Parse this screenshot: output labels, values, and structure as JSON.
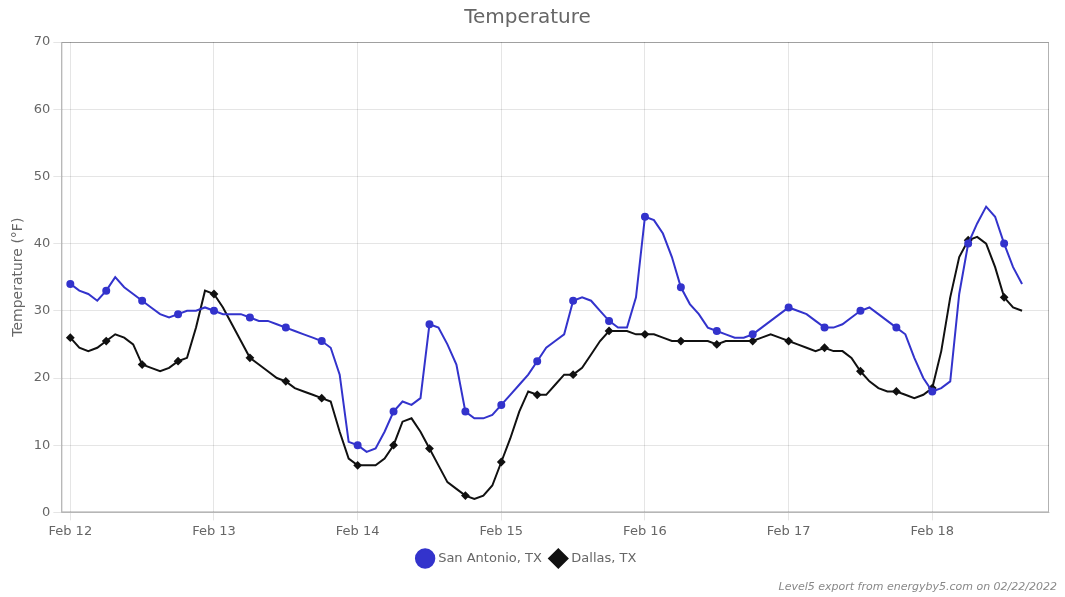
{
  "chart_data": {
    "type": "line",
    "title": "Temperature",
    "y_label": "Temperature (°F)",
    "annotations": [
      "Level5 export from energyby5.com on 02/22/2022"
    ],
    "x": [
      0,
      0.5,
      1,
      1.5,
      2,
      2.5,
      3,
      3.5,
      4,
      4.5,
      5,
      5.5,
      6,
      6.5,
      7,
      7.5,
      8,
      8.5,
      9,
      9.5,
      10,
      10.5,
      11,
      11.5,
      12,
      12.5,
      13,
      13.5,
      14,
      14.5,
      15,
      15.5,
      16,
      16.5,
      17,
      17.5,
      18,
      18.5,
      19,
      19.5,
      20,
      20.5,
      21,
      21.5,
      22,
      22.5,
      23,
      23.5,
      24,
      24.5,
      25,
      25.5,
      26,
      26.5,
      27,
      27.5,
      28,
      28.5,
      29,
      29.5,
      30,
      30.5,
      31,
      31.5,
      32,
      32.5,
      33,
      33.5,
      34,
      34.5,
      35,
      35.5,
      36,
      36.5,
      37,
      37.5,
      38,
      38.5,
      39,
      39.5,
      40,
      40.5,
      41,
      41.5,
      42,
      42.5,
      43,
      43.5,
      44,
      44.5,
      45,
      45.5,
      46,
      46.5,
      47,
      47.5,
      48,
      48.5,
      49,
      49.5,
      50,
      50.5,
      51,
      51.5,
      52,
      52.5,
      53
    ],
    "series": [
      {
        "name": "San Antonio, TX",
        "color": "#3333cc",
        "marker": "circle",
        "values": [
          34.0,
          33.0,
          32.5,
          31.5,
          33.0,
          35.0,
          33.5,
          32.5,
          31.5,
          30.5,
          29.5,
          29.0,
          29.5,
          30.0,
          30.0,
          30.5,
          30.0,
          29.5,
          29.5,
          29.5,
          29.0,
          28.5,
          28.5,
          28.0,
          27.5,
          27.0,
          26.5,
          26.0,
          25.5,
          24.5,
          20.5,
          10.5,
          10.0,
          9.0,
          9.5,
          12.0,
          15.0,
          16.5,
          16.0,
          17.0,
          28.0,
          27.5,
          25.0,
          22.0,
          15.0,
          14.0,
          14.0,
          14.5,
          16.0,
          17.5,
          19.0,
          20.5,
          22.5,
          24.5,
          25.5,
          26.5,
          31.5,
          32.0,
          31.5,
          30.0,
          28.5,
          27.5,
          27.5,
          32.0,
          44.0,
          43.5,
          41.5,
          38.0,
          33.5,
          31.0,
          29.5,
          27.5,
          27.0,
          26.5,
          26.0,
          26.0,
          26.5,
          27.5,
          28.5,
          29.5,
          30.5,
          30.0,
          29.5,
          28.5,
          27.5,
          27.5,
          28.0,
          29.0,
          30.0,
          30.5,
          29.5,
          28.5,
          27.5,
          26.5,
          23.0,
          20.0,
          18.0,
          18.5,
          19.5,
          32.5,
          40.0,
          43.0,
          45.5,
          44.0,
          40.0,
          36.5,
          34.0
        ]
      },
      {
        "name": "Dallas, TX",
        "color": "#111111",
        "marker": "diamond",
        "values": [
          26.0,
          24.5,
          24.0,
          24.5,
          25.5,
          26.5,
          26.0,
          25.0,
          22.0,
          21.5,
          21.0,
          21.5,
          22.5,
          23.0,
          27.5,
          33.0,
          32.5,
          30.5,
          28.0,
          25.5,
          23.0,
          22.0,
          21.0,
          20.0,
          19.5,
          18.5,
          18.0,
          17.5,
          17.0,
          16.5,
          12.0,
          8.0,
          7.0,
          7.0,
          7.0,
          8.0,
          10.0,
          13.5,
          14.0,
          12.0,
          9.5,
          7.0,
          4.5,
          3.5,
          2.5,
          2.0,
          2.5,
          4.0,
          7.5,
          11.0,
          15.0,
          18.0,
          17.5,
          17.5,
          19.0,
          20.5,
          20.5,
          21.5,
          23.5,
          25.5,
          27.0,
          27.0,
          27.0,
          26.5,
          26.5,
          26.5,
          26.0,
          25.5,
          25.5,
          25.5,
          25.5,
          25.5,
          25.0,
          25.5,
          25.5,
          25.5,
          25.5,
          26.0,
          26.5,
          26.0,
          25.5,
          25.0,
          24.5,
          24.0,
          24.5,
          24.0,
          24.0,
          23.0,
          21.0,
          19.5,
          18.5,
          18.0,
          18.0,
          17.5,
          17.0,
          17.5,
          18.5,
          24.0,
          32.0,
          38.0,
          40.5,
          41.0,
          40.0,
          36.5,
          32.0,
          30.5,
          30.0
        ]
      }
    ],
    "xlim": [
      -0.5,
      54.5
    ],
    "xticks": [
      {
        "value": 0,
        "label": "Feb 12"
      },
      {
        "value": 8,
        "label": "Feb 13"
      },
      {
        "value": 16,
        "label": "Feb 14"
      },
      {
        "value": 24,
        "label": "Feb 15"
      },
      {
        "value": 32,
        "label": "Feb 16"
      },
      {
        "value": 40,
        "label": "Feb 17"
      },
      {
        "value": 48,
        "label": "Feb 18"
      }
    ],
    "ylim": [
      0,
      70
    ],
    "yticks": [
      0,
      10,
      20,
      30,
      40,
      50,
      60,
      70
    ],
    "grid": true,
    "legend": "bottom"
  }
}
